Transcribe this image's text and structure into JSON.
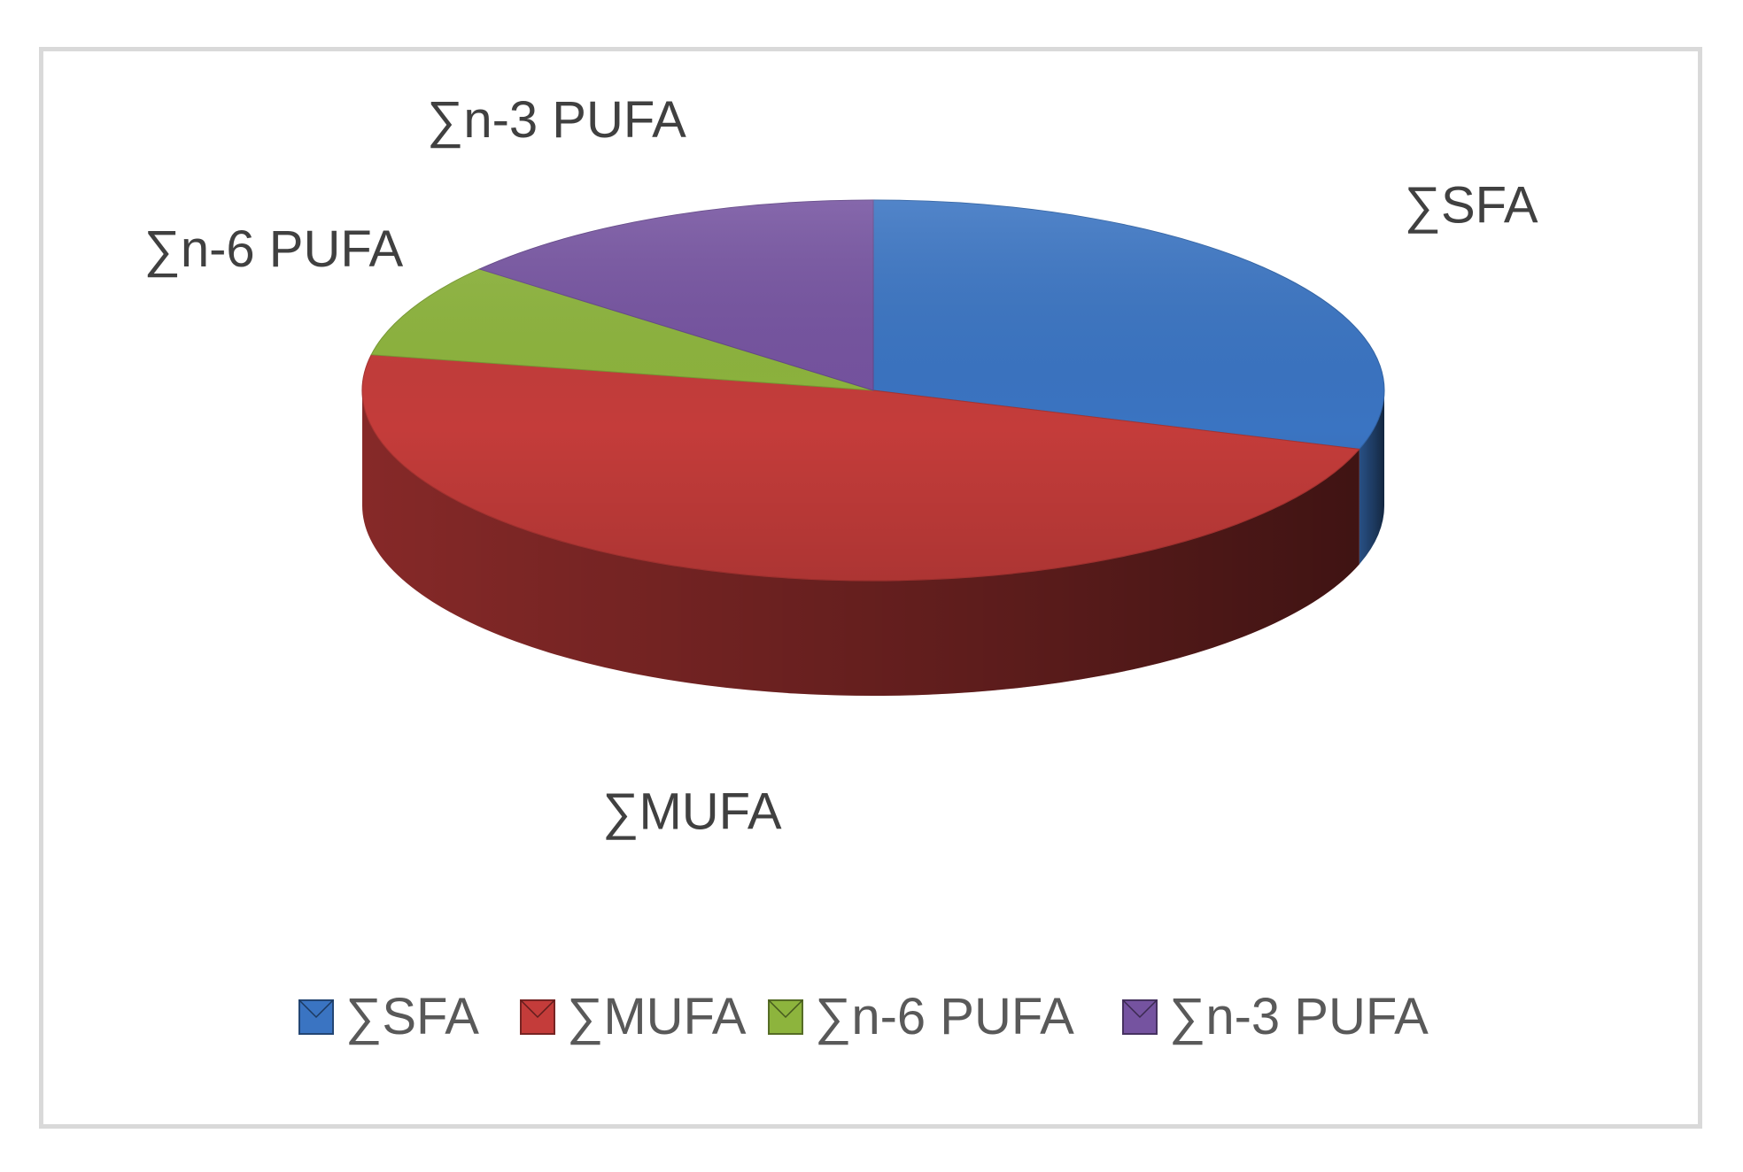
{
  "chart_data": {
    "type": "pie",
    "title": "",
    "categories": [
      "∑SFA",
      "∑MUFA",
      "∑n-6 PUFA",
      "∑n-3 PUFA"
    ],
    "values": [
      30,
      48,
      8,
      14
    ],
    "colors": [
      "#3a74c2",
      "#c43c3a",
      "#8db43d",
      "#7553a0"
    ],
    "three_d": true,
    "legend_position": "bottom",
    "data_labels": "category names outside slices"
  }
}
